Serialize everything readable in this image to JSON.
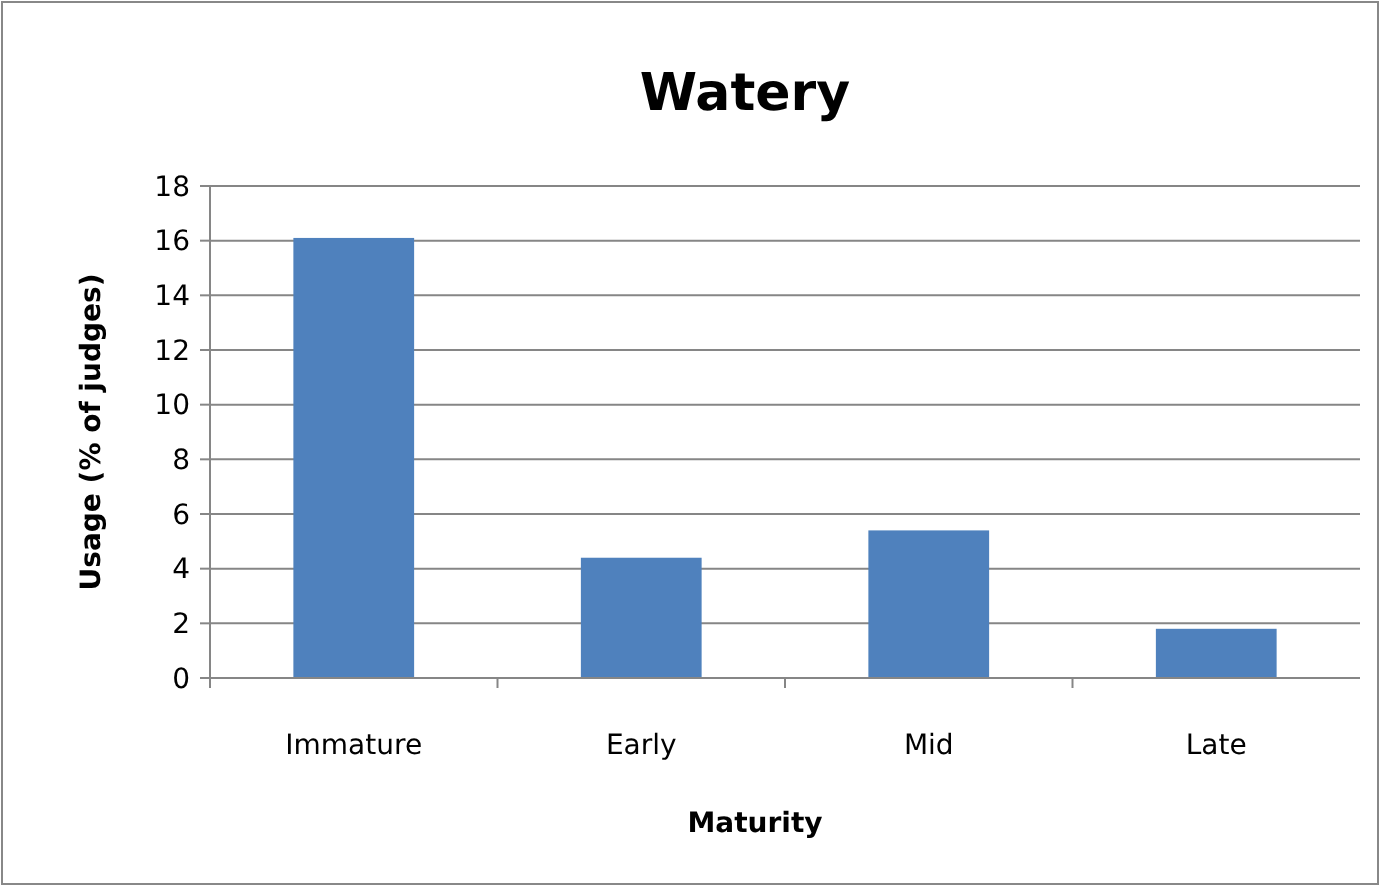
{
  "chart_data": {
    "type": "bar",
    "title": "Watery",
    "xlabel": "Maturity",
    "ylabel": "Usage (% of judges)",
    "categories": [
      "Immature",
      "Early",
      "Mid",
      "Late"
    ],
    "values": [
      16.1,
      4.4,
      5.4,
      1.8
    ],
    "color": "#4f81bd",
    "ylim": [
      0,
      18
    ],
    "yticks": [
      0,
      2,
      4,
      6,
      8,
      10,
      12,
      14,
      16,
      18
    ],
    "grid": "y"
  }
}
